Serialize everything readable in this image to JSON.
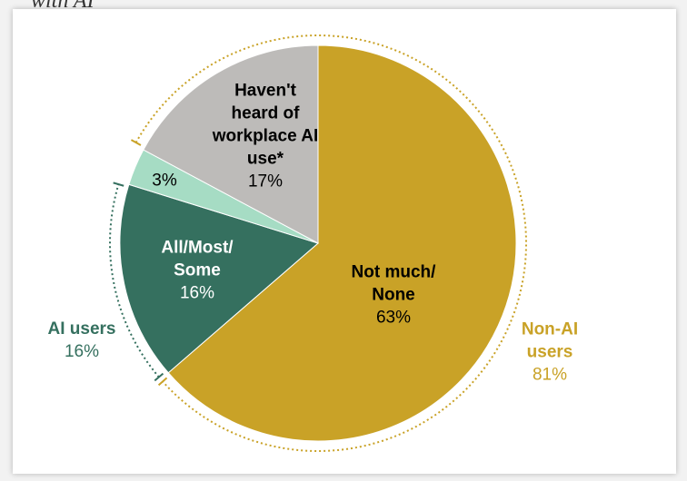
{
  "chart_data": {
    "type": "pie",
    "title": "with AI",
    "categories": [
      "Not much/ None",
      "All/Most/ Some",
      null,
      "Haven't heard of workplace AI use*"
    ],
    "values": [
      63,
      16,
      3,
      17
    ],
    "value_labels": [
      "63%",
      "16%",
      "3%",
      "17%"
    ],
    "colors": [
      "#c9a227",
      "#35705f",
      "#a6dcc4",
      "#bdbbb9"
    ],
    "groups": [
      {
        "name": "AI users",
        "value": 16,
        "value_label": "16%",
        "color": "#35705f"
      },
      {
        "name": "Non-AI users",
        "value": 81,
        "value_label": "81%",
        "color": "#c9a227"
      }
    ]
  }
}
